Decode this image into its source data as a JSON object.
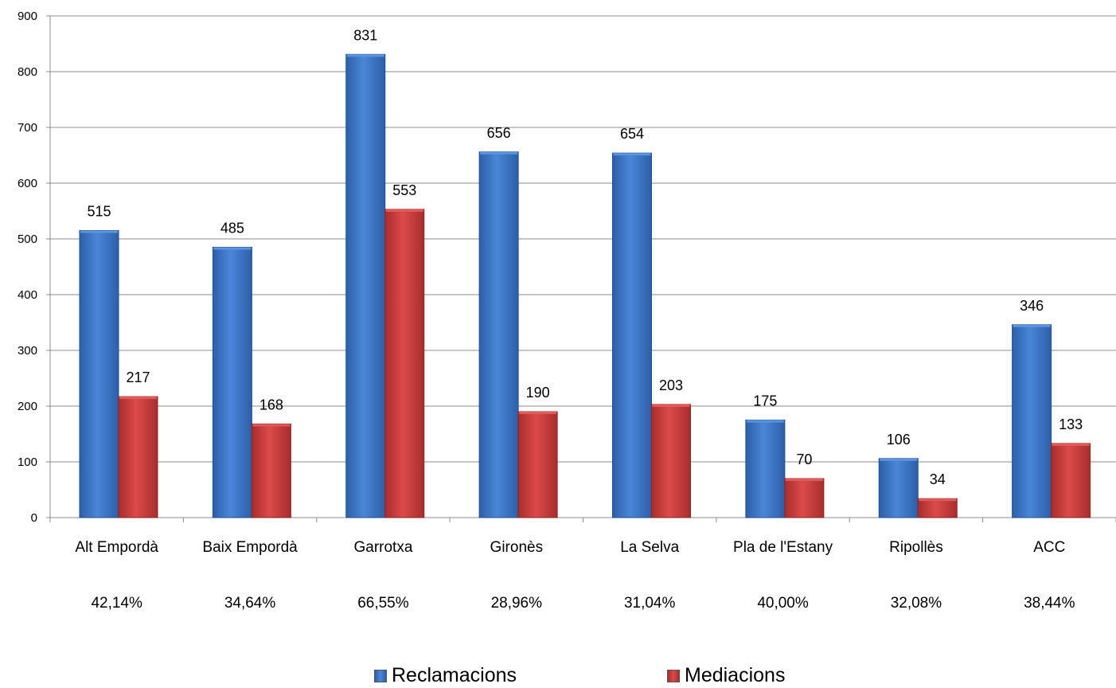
{
  "chart_data": {
    "type": "bar",
    "categories": [
      "Alt Empordà",
      "Baix Empordà",
      "Garrotxa",
      "Gironès",
      "La Selva",
      "Pla de l'Estany",
      "Ripollès",
      "ACC"
    ],
    "percentages": [
      "42,14%",
      "34,64%",
      "66,55%",
      "28,96%",
      "31,04%",
      "40,00%",
      "32,08%",
      "38,44%"
    ],
    "series": [
      {
        "name": "Reclamacions",
        "values": [
          515,
          485,
          831,
          656,
          654,
          175,
          106,
          346
        ],
        "color": "#3a74c8"
      },
      {
        "name": "Mediacions",
        "values": [
          217,
          168,
          553,
          190,
          203,
          70,
          34,
          133
        ],
        "color": "#c83a3a"
      }
    ],
    "yticks": [
      "0",
      "100",
      "200",
      "300",
      "400",
      "500",
      "600",
      "700",
      "800",
      "900"
    ],
    "ylim": [
      0,
      900
    ],
    "grid": true,
    "legend": "bottom"
  }
}
